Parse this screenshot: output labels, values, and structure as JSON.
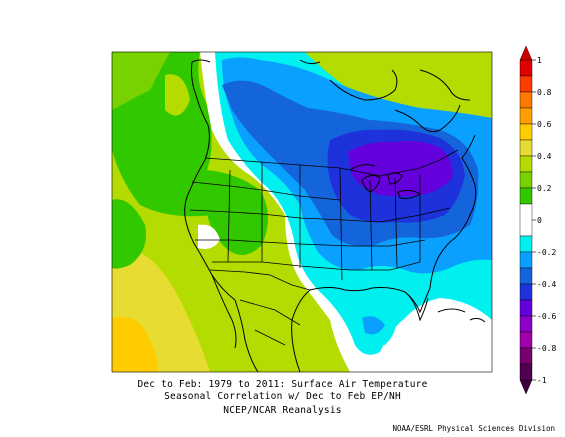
{
  "caption": {
    "line1": "Dec to Feb: 1979 to 2011: Surface Air Temperature",
    "line2": "Seasonal Correlation w/ Dec to Feb EP/NH",
    "line3": "NCEP/NCAR Reanalysis"
  },
  "credit": "NOAA/ESRL Physical Sciences Division",
  "colorbar": {
    "ticks": [
      "1",
      "0.8",
      "0.6",
      "0.4",
      "0.2",
      "0",
      "-0.2",
      "-0.4",
      "-0.6",
      "-0.8",
      "-1"
    ],
    "bins": [
      {
        "from": 0.9,
        "to": 1.0,
        "color": "#e00000"
      },
      {
        "from": 0.8,
        "to": 0.9,
        "color": "#ff3c00"
      },
      {
        "from": 0.7,
        "to": 0.8,
        "color": "#ff7800"
      },
      {
        "from": 0.6,
        "to": 0.7,
        "color": "#ffa000"
      },
      {
        "from": 0.5,
        "to": 0.6,
        "color": "#ffcc00"
      },
      {
        "from": 0.4,
        "to": 0.5,
        "color": "#e6dc32"
      },
      {
        "from": 0.3,
        "to": 0.4,
        "color": "#b4dc00"
      },
      {
        "from": 0.2,
        "to": 0.3,
        "color": "#78d200"
      },
      {
        "from": 0.1,
        "to": 0.2,
        "color": "#32c800"
      },
      {
        "from": -0.1,
        "to": 0.1,
        "color": "#ffffff"
      },
      {
        "from": -0.2,
        "to": -0.1,
        "color": "#00f0f0"
      },
      {
        "from": -0.3,
        "to": -0.2,
        "color": "#0aa0ff"
      },
      {
        "from": -0.4,
        "to": -0.3,
        "color": "#1464dc"
      },
      {
        "from": -0.5,
        "to": -0.4,
        "color": "#1e32dc"
      },
      {
        "from": -0.6,
        "to": -0.5,
        "color": "#6400dc"
      },
      {
        "from": -0.7,
        "to": -0.6,
        "color": "#8c00c8"
      },
      {
        "from": -0.8,
        "to": -0.7,
        "color": "#a000aa"
      },
      {
        "from": -0.9,
        "to": -0.8,
        "color": "#78006e"
      },
      {
        "from": -1.0,
        "to": -0.9,
        "color": "#500050"
      }
    ],
    "top_arrow_color": "#cc0000",
    "bottom_arrow_color": "#3c003c"
  }
}
